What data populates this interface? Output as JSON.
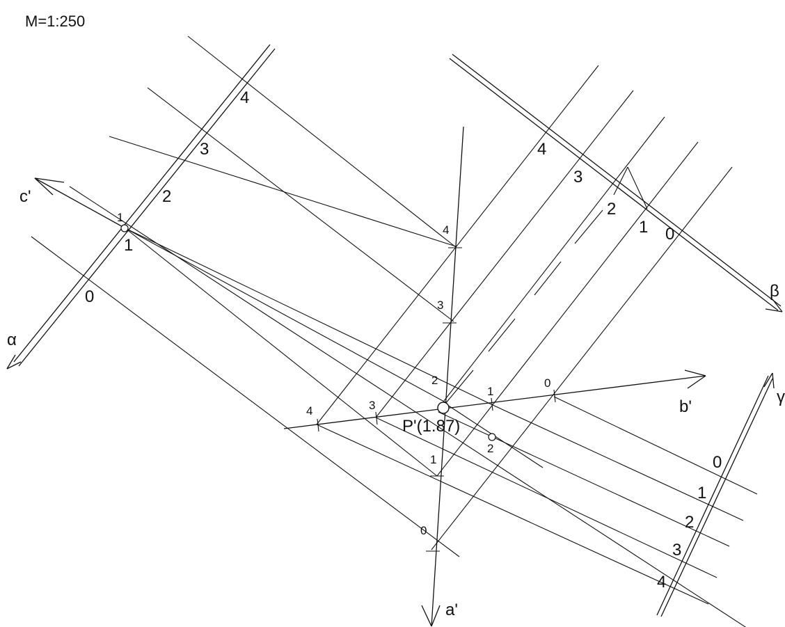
{
  "scale_label": "M=1:250",
  "planes": {
    "alpha": {
      "name": "α",
      "marks": [
        "0",
        "1",
        "2",
        "3",
        "4"
      ]
    },
    "beta": {
      "name": "β",
      "marks": [
        "0",
        "1",
        "2",
        "3",
        "4"
      ]
    },
    "gamma": {
      "name": "γ",
      "marks": [
        "0",
        "1",
        "2",
        "3",
        "4"
      ]
    }
  },
  "axes": {
    "a": {
      "name": "a'",
      "marks": [
        "0",
        "1",
        "2",
        "3",
        "4"
      ]
    },
    "b": {
      "name": "b'",
      "marks": [
        "0",
        "1",
        "2",
        "3",
        "4"
      ]
    },
    "c": {
      "name": "c'",
      "marks": [
        "1",
        "2"
      ]
    }
  },
  "point": {
    "label": "P'(1.87)"
  }
}
